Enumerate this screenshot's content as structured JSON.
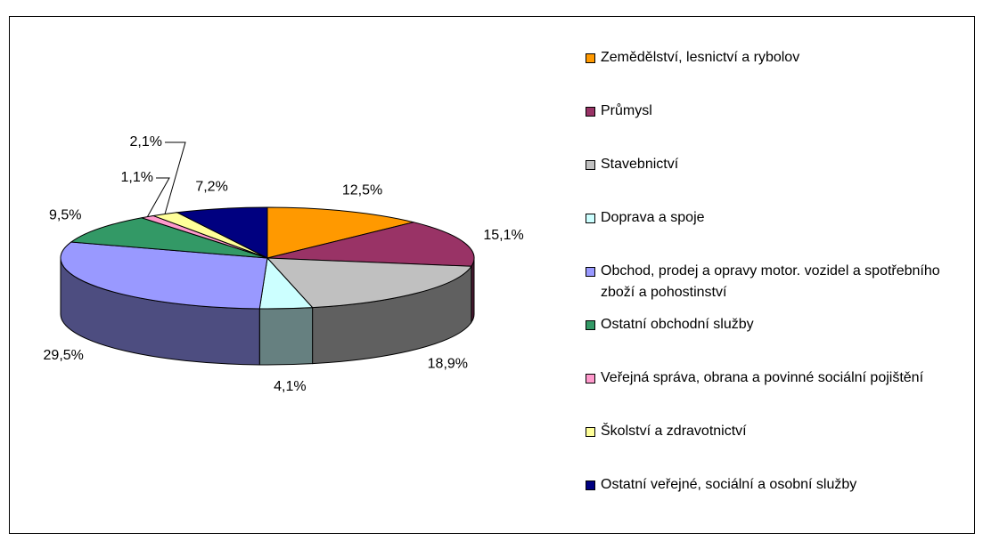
{
  "chart_data": {
    "type": "pie",
    "categories": [
      "Zemědělství, lesnictví a rybolov",
      "Průmysl",
      "Stavebnictví",
      "Doprava a spoje",
      "Obchod, prodej a opravy motor. vozidel a spotřebního zboží a pohostinství",
      "Ostatní obchodní služby",
      "Veřejná správa, obrana a povinné sociální pojištění",
      "Školství a zdravotnictví",
      "Ostatní veřejné, sociální a osobní služby"
    ],
    "values": [
      12.5,
      15.1,
      18.9,
      4.1,
      29.5,
      9.5,
      1.1,
      2.1,
      7.2
    ],
    "value_labels": [
      "12,5%",
      "15,1%",
      "18,9%",
      "4,1%",
      "29,5%",
      "9,5%",
      "1,1%",
      "2,1%",
      "7,2%"
    ],
    "colors": [
      "#FF9900",
      "#993366",
      "#C0C0C0",
      "#CCFFFF",
      "#9999FF",
      "#339966",
      "#FF99CC",
      "#FFFF99",
      "#000080"
    ]
  }
}
